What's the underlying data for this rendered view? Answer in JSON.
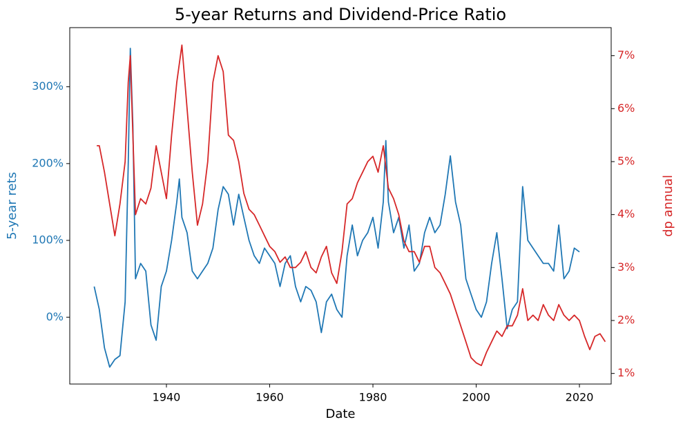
{
  "chart_data": {
    "type": "line",
    "title": "5-year Returns and Dividend-Price Ratio",
    "xlabel": "Date",
    "ylabel": "5-year rets",
    "y2label": "dp annual",
    "xlim": [
      1921.27,
      2026.15
    ],
    "xticks": [
      1940,
      1960,
      1980,
      2000,
      2020
    ],
    "ylim": [
      -87,
      377
    ],
    "yticks": [
      {
        "value": 0,
        "label": "0%"
      },
      {
        "value": 100,
        "label": "100%"
      },
      {
        "value": 200,
        "label": "200%"
      },
      {
        "value": 300,
        "label": "300%"
      }
    ],
    "y2lim": [
      0.8,
      7.53
    ],
    "y2ticks": [
      {
        "value": 1,
        "label": "1%"
      },
      {
        "value": 2,
        "label": "2%"
      },
      {
        "value": 3,
        "label": "3%"
      },
      {
        "value": 4,
        "label": "4%"
      },
      {
        "value": 5,
        "label": "5%"
      },
      {
        "value": 6,
        "label": "6%"
      },
      {
        "value": 7,
        "label": "7%"
      }
    ],
    "grid": false,
    "series": [
      {
        "name": "5-year rets",
        "color": "#1f77b4",
        "axis": "y",
        "x": [
          1926,
          1927,
          1928,
          1929,
          1930,
          1931,
          1932,
          1932.6,
          1933,
          1933.5,
          1934,
          1935,
          1936,
          1937,
          1938,
          1939,
          1940,
          1941,
          1942,
          1942.5,
          1943,
          1944,
          1945,
          1946,
          1947,
          1948,
          1949,
          1950,
          1951,
          1952,
          1953,
          1954,
          1955,
          1956,
          1957,
          1958,
          1959,
          1960,
          1961,
          1962,
          1963,
          1964,
          1965,
          1966,
          1967,
          1968,
          1969,
          1970,
          1971,
          1972,
          1973,
          1974,
          1975,
          1976,
          1977,
          1978,
          1979,
          1980,
          1981,
          1982,
          1982.5,
          1983,
          1984,
          1985,
          1986,
          1987,
          1988,
          1989,
          1990,
          1991,
          1992,
          1993,
          1994,
          1995,
          1996,
          1997,
          1998,
          1999,
          2000,
          2001,
          2002,
          2003,
          2004,
          2005,
          2006,
          2007,
          2008,
          2009,
          2010,
          2011,
          2012,
          2013,
          2014,
          2015,
          2016,
          2017,
          2018,
          2019,
          2020
        ],
        "values": [
          40,
          10,
          -40,
          -65,
          -55,
          -50,
          20,
          200,
          350,
          250,
          50,
          70,
          60,
          -10,
          -30,
          40,
          60,
          100,
          150,
          180,
          130,
          110,
          60,
          50,
          60,
          70,
          90,
          140,
          170,
          160,
          120,
          160,
          130,
          100,
          80,
          70,
          90,
          80,
          70,
          40,
          70,
          80,
          40,
          20,
          40,
          35,
          20,
          -20,
          20,
          30,
          10,
          0,
          80,
          120,
          80,
          100,
          110,
          130,
          90,
          150,
          230,
          150,
          110,
          130,
          90,
          120,
          60,
          70,
          110,
          130,
          110,
          120,
          160,
          210,
          150,
          120,
          50,
          30,
          10,
          0,
          20,
          70,
          110,
          50,
          -15,
          10,
          20,
          170,
          100,
          90,
          80,
          70,
          70,
          60,
          120,
          50,
          60,
          90,
          85
        ]
      },
      {
        "name": "dp annual",
        "color": "#d62728",
        "axis": "y2",
        "x": [
          1926.5,
          1927,
          1928,
          1929,
          1930,
          1931,
          1932,
          1932.6,
          1933,
          1933.5,
          1934,
          1935,
          1936,
          1937,
          1938,
          1939,
          1940,
          1941,
          1942,
          1943,
          1944,
          1945,
          1946,
          1947,
          1948,
          1949,
          1950,
          1951,
          1952,
          1953,
          1954,
          1955,
          1956,
          1957,
          1958,
          1959,
          1960,
          1961,
          1962,
          1963,
          1964,
          1965,
          1966,
          1967,
          1968,
          1969,
          1970,
          1971,
          1972,
          1973,
          1974,
          1975,
          1976,
          1977,
          1978,
          1979,
          1980,
          1981,
          1982,
          1983,
          1984,
          1985,
          1986,
          1987,
          1988,
          1989,
          1990,
          1991,
          1992,
          1993,
          1994,
          1995,
          1996,
          1997,
          1998,
          1999,
          2000,
          2001,
          2002,
          2003,
          2004,
          2005,
          2006,
          2007,
          2008,
          2009,
          2010,
          2011,
          2012,
          2013,
          2014,
          2015,
          2016,
          2017,
          2018,
          2019,
          2020,
          2021,
          2022,
          2023,
          2024,
          2025
        ],
        "values": [
          5.3,
          5.3,
          4.8,
          4.2,
          3.6,
          4.2,
          5.0,
          6.5,
          7.0,
          5.5,
          4.0,
          4.3,
          4.2,
          4.5,
          5.3,
          4.8,
          4.3,
          5.5,
          6.5,
          7.2,
          6.0,
          4.8,
          3.8,
          4.2,
          5.0,
          6.5,
          7.0,
          6.7,
          5.5,
          5.4,
          5.0,
          4.4,
          4.1,
          4.0,
          3.8,
          3.6,
          3.4,
          3.3,
          3.1,
          3.2,
          3.0,
          3.0,
          3.1,
          3.3,
          3.0,
          2.9,
          3.2,
          3.4,
          2.9,
          2.7,
          3.3,
          4.2,
          4.3,
          4.6,
          4.8,
          5.0,
          5.1,
          4.8,
          5.3,
          4.5,
          4.3,
          4.0,
          3.5,
          3.3,
          3.3,
          3.1,
          3.4,
          3.4,
          3.0,
          2.9,
          2.7,
          2.5,
          2.2,
          1.9,
          1.6,
          1.3,
          1.2,
          1.15,
          1.4,
          1.6,
          1.8,
          1.7,
          1.9,
          1.9,
          2.1,
          2.6,
          2.0,
          2.1,
          2.0,
          2.3,
          2.1,
          2.0,
          2.3,
          2.1,
          2.0,
          2.1,
          2.0,
          1.7,
          1.45,
          1.7,
          1.75,
          1.6
        ]
      }
    ]
  }
}
